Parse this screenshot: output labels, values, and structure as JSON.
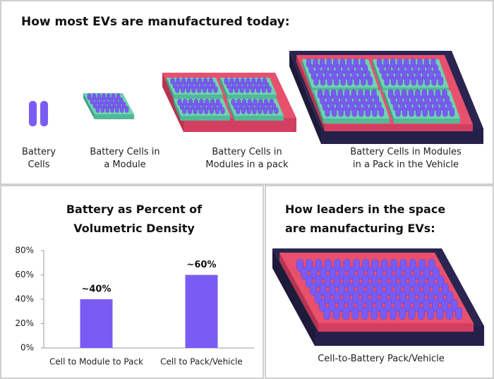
{
  "header": {
    "title": "How most EVs are manufactured today:"
  },
  "steps": [
    {
      "label": "Battery Cells"
    },
    {
      "label": "Battery Cells in a Module"
    },
    {
      "label": "Battery Cells in Modules in a pack"
    },
    {
      "label": "Battery Cells in Modules in a Pack in the Vehicle"
    }
  ],
  "chart_data": {
    "type": "bar",
    "title": "Battery as Percent of Volumetric Density",
    "categories": [
      "Cell to Module to Pack",
      "Cell to Pack/Vehicle"
    ],
    "values": [
      40,
      60
    ],
    "value_labels": [
      "~40%",
      "~60%"
    ],
    "color": "#7b5cf2",
    "ylim": [
      0,
      80
    ],
    "yticks": [
      {
        "value": 0,
        "label": "0%"
      },
      {
        "value": 20,
        "label": "20%"
      },
      {
        "value": 40,
        "label": "40%"
      },
      {
        "value": 60,
        "label": "60%"
      },
      {
        "value": 80,
        "label": "80%"
      }
    ]
  },
  "leaders": {
    "title": "How leaders in the space are manufacturing EVs:",
    "caption": "Cell-to-Battery Pack/Vehicle"
  }
}
